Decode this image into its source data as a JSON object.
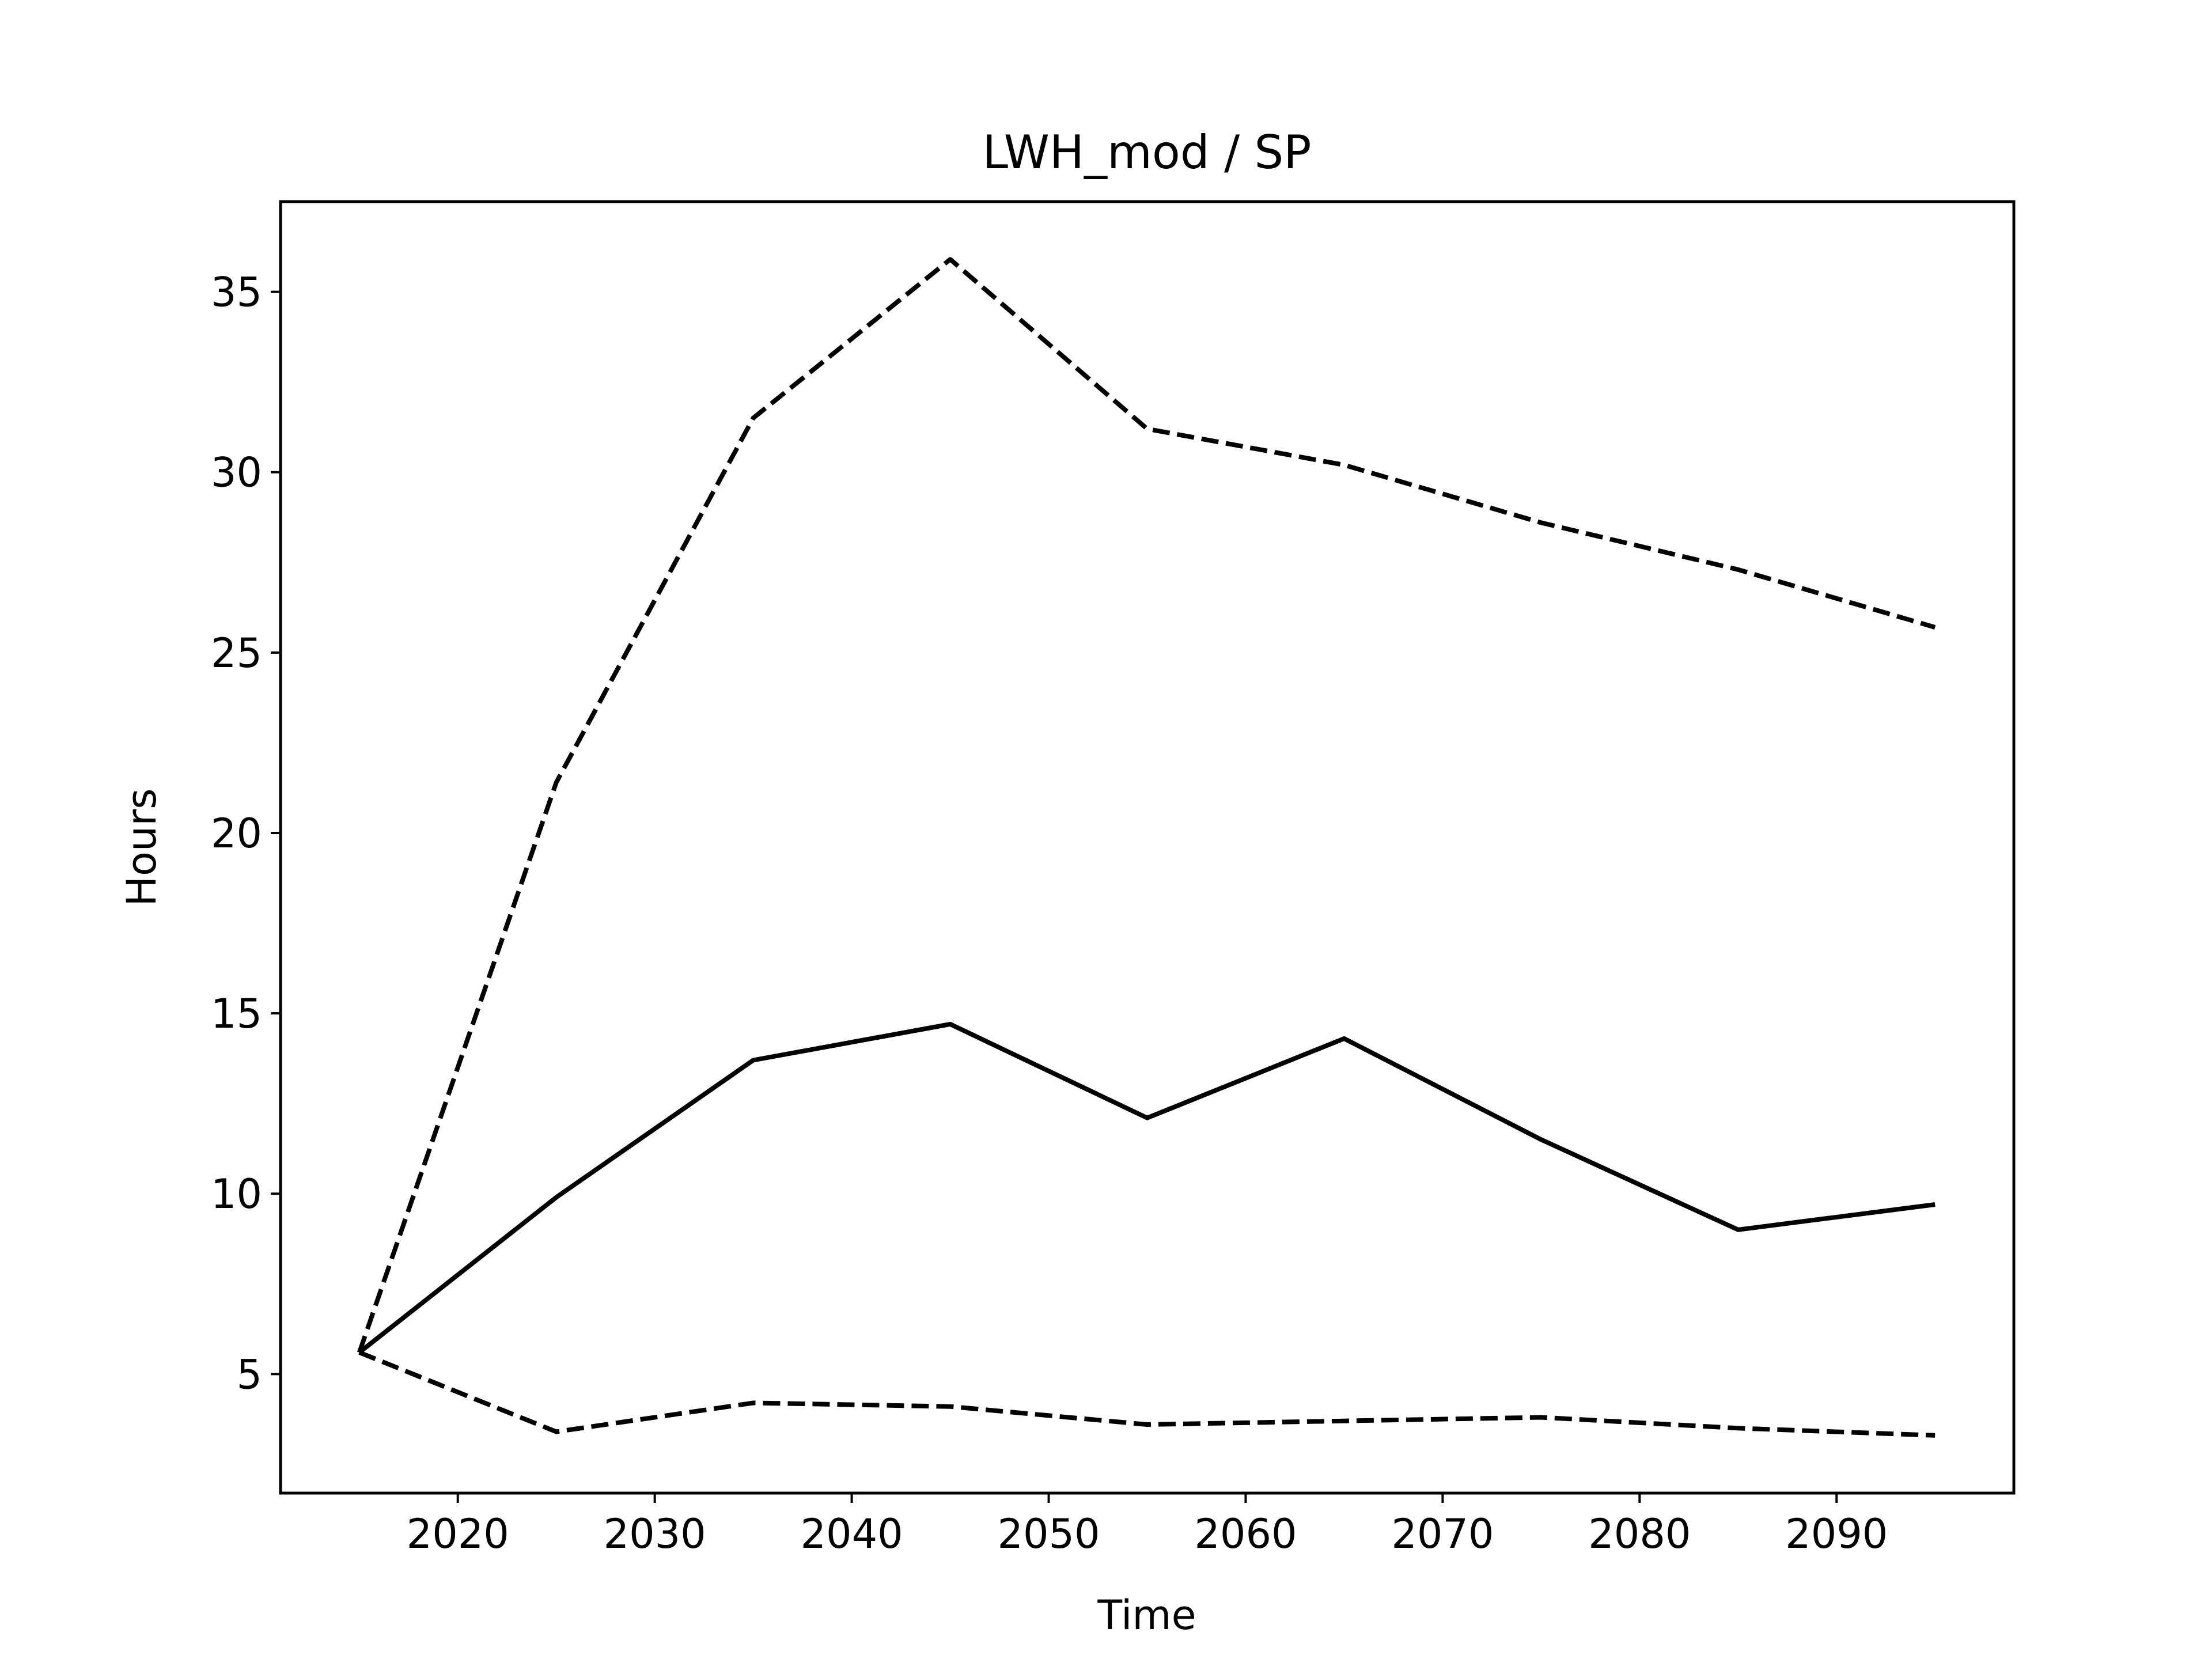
{
  "chart_data": {
    "type": "line",
    "title": "LWH_mod / SP",
    "xlabel": "Time",
    "ylabel": "Hours",
    "xlim": [
      2011,
      2099
    ],
    "ylim": [
      1.7,
      37.5
    ],
    "xticks": [
      2020,
      2030,
      2040,
      2050,
      2060,
      2070,
      2080,
      2090
    ],
    "yticks": [
      5,
      10,
      15,
      20,
      25,
      30,
      35
    ],
    "x": [
      2015,
      2025,
      2035,
      2045,
      2055,
      2065,
      2075,
      2085,
      2095
    ],
    "series": [
      {
        "style": "dashed",
        "color": "#000000",
        "values": [
          5.6,
          21.4,
          31.5,
          35.9,
          31.2,
          30.2,
          28.6,
          27.3,
          25.7
        ]
      },
      {
        "style": "solid",
        "color": "#000000",
        "values": [
          5.6,
          9.9,
          13.7,
          14.7,
          12.1,
          14.3,
          11.5,
          9.0,
          9.7
        ]
      },
      {
        "style": "dashed",
        "color": "#000000",
        "values": [
          5.6,
          3.4,
          4.2,
          4.1,
          3.6,
          3.7,
          3.8,
          3.5,
          3.3
        ]
      }
    ],
    "grid": false,
    "legend": false
  }
}
